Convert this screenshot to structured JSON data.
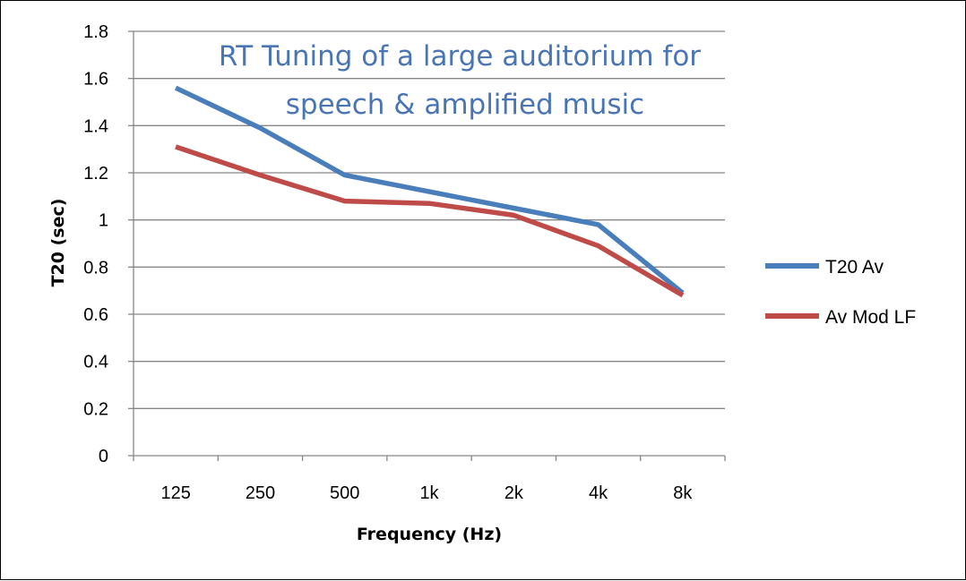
{
  "chart_data": {
    "type": "line",
    "title": "RT Tuning of a large auditorium  for",
    "subtitle": "speech & amplified music",
    "xlabel": "Frequency (Hz)",
    "ylabel": "T20 (sec)",
    "categories": [
      "125",
      "250",
      "500",
      "1k",
      "2k",
      "4k",
      "8k"
    ],
    "ylim": [
      0,
      1.8
    ],
    "ytick_step": 0.2,
    "ytick_labels": [
      "0",
      "0.2",
      "0.4",
      "0.6",
      "0.8",
      "1",
      "1.2",
      "1.4",
      "1.6",
      "1.8"
    ],
    "grid": true,
    "legend_position": "right",
    "series": [
      {
        "name": "T20 Av",
        "color": "#4a7ebb",
        "values": [
          1.56,
          1.39,
          1.19,
          1.12,
          1.05,
          0.98,
          0.69
        ]
      },
      {
        "name": "Av Mod LF",
        "color": "#be4b48",
        "values": [
          1.31,
          1.19,
          1.08,
          1.07,
          1.02,
          0.89,
          0.68
        ]
      }
    ]
  }
}
